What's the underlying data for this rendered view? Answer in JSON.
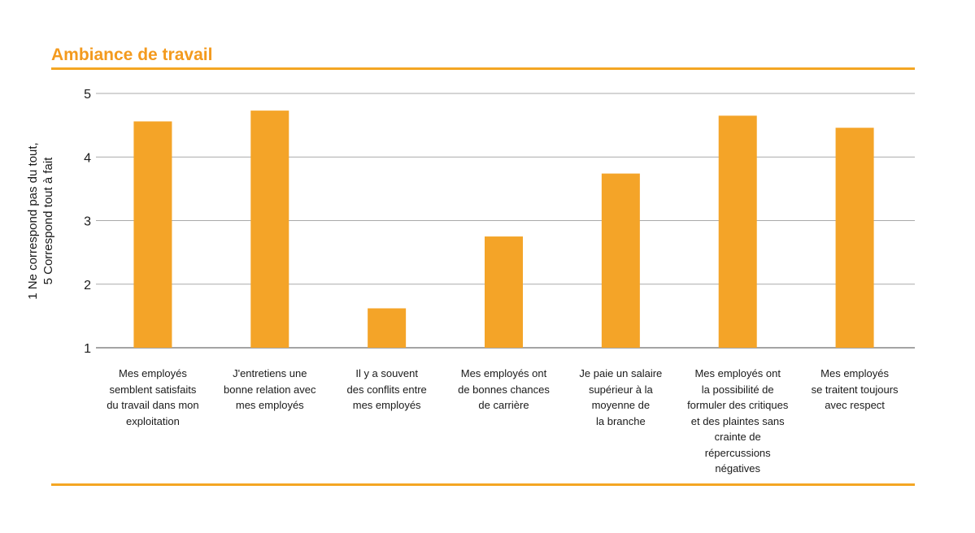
{
  "header": {
    "title": "Ambiance de travail"
  },
  "chart_data": {
    "type": "bar",
    "title": "Ambiance de travail",
    "ylabel_lines": [
      "1 Ne correspond pas du tout,",
      "5 Correspond tout à fait"
    ],
    "xlabel": "",
    "ylim": [
      1,
      5
    ],
    "yticks": [
      "1",
      "2",
      "3",
      "4",
      "5"
    ],
    "grid": true,
    "bar_color": "#F4A428",
    "categories": [
      "Mes employés\nsemblent satisfaits\ndu travail dans mon\nexploitation",
      "J'entretiens une\nbonne relation avec\nmes employés",
      "Il y a souvent\ndes conflits entre\nmes employés",
      "Mes employés ont\nde bonnes chances\nde carrière",
      "Je paie un salaire\nsupérieur à la\nmoyenne de\nla branche",
      "Mes employés ont\nla possibilité de\nformuler des critiques\net des plaintes sans\ncrainte de\nrépercussions\nnégatives",
      "Mes employés\nse traitent toujours\navec respect"
    ],
    "values": [
      4.56,
      4.73,
      1.62,
      2.75,
      3.74,
      4.65,
      4.46
    ]
  }
}
